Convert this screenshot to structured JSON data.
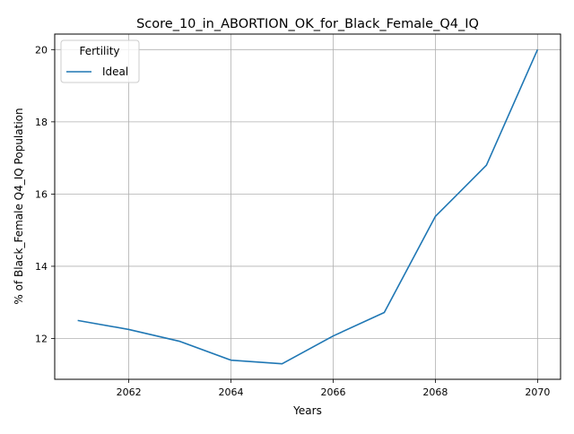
{
  "chart_data": {
    "type": "line",
    "title": "Score_10_in_ABORTION_OK_for_Black_Female_Q4_IQ",
    "xlabel": "Years",
    "ylabel": "% of Black_Female Q4_IQ Population",
    "xlim": [
      2060.55,
      2070.45
    ],
    "ylim": [
      10.87,
      20.43
    ],
    "xticks": [
      2062,
      2064,
      2066,
      2068,
      2070
    ],
    "yticks": [
      12,
      14,
      16,
      18,
      20
    ],
    "grid": true,
    "legend": {
      "title": "Fertility",
      "placement": "top-left"
    },
    "x": [
      2061,
      2062,
      2063,
      2064,
      2065,
      2066,
      2067,
      2068,
      2069,
      2070
    ],
    "series": [
      {
        "name": "Ideal",
        "color": "#1f77b4",
        "values": [
          12.5,
          12.25,
          11.92,
          11.4,
          11.3,
          12.07,
          12.72,
          15.38,
          16.8,
          20.0
        ]
      }
    ]
  }
}
